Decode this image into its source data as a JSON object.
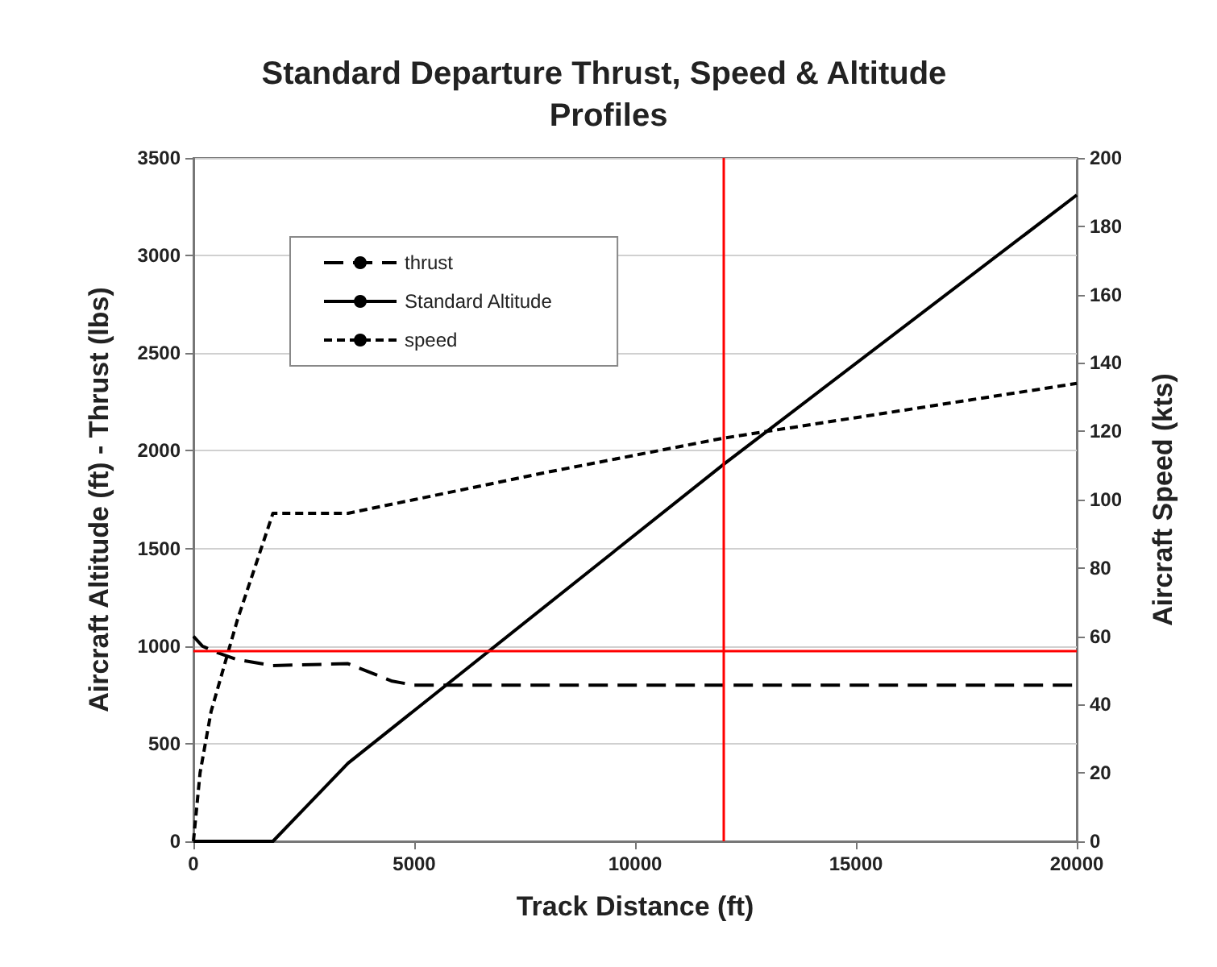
{
  "chart_data": {
    "type": "line",
    "title": "Standard Departure Thrust, Speed & Altitude Profiles",
    "xlabel": "Track Distance (ft)",
    "ylabel": "Aircraft Altitude (ft) - Thrust (lbs)",
    "y2label": "Aircraft Speed (kts)",
    "xlim": [
      0,
      20000
    ],
    "xticks": [
      0,
      5000,
      10000,
      15000,
      20000
    ],
    "ylim": [
      0,
      3500
    ],
    "yticks": [
      0,
      500,
      1000,
      1500,
      2000,
      2500,
      3000,
      3500
    ],
    "y2lim": [
      0,
      200
    ],
    "y2ticks": [
      0,
      20,
      40,
      60,
      80,
      100,
      120,
      140,
      160,
      180,
      200
    ],
    "series": [
      {
        "name": "thrust",
        "color": "#000000",
        "line_style": "dashed",
        "x": [
          0,
          200,
          500,
          1000,
          1800,
          3500,
          4500,
          5000,
          20000
        ],
        "values": [
          1050,
          1000,
          970,
          930,
          900,
          910,
          820,
          800,
          800
        ]
      },
      {
        "name": "Standard Altitude",
        "color": "#000000",
        "line_style": "solid",
        "x": [
          0,
          1800,
          3500,
          12000,
          20000
        ],
        "values": [
          0,
          0,
          400,
          1930,
          3310
        ]
      },
      {
        "name": "speed",
        "color": "#000000",
        "line_style": "dotted",
        "axis": "y2",
        "x": [
          0,
          150,
          400,
          1000,
          1800,
          3500,
          5000,
          8000,
          12000,
          16000,
          20000
        ],
        "values": [
          0,
          20,
          38,
          65,
          96,
          96,
          100,
          108,
          118,
          126,
          134
        ]
      }
    ],
    "ref_lines": [
      {
        "axis": "y",
        "value": 975,
        "color": "#ff0000"
      },
      {
        "axis": "x",
        "value": 12000,
        "color": "#ff0000"
      }
    ],
    "grid": "y",
    "legend": "top left",
    "marker": "none"
  }
}
